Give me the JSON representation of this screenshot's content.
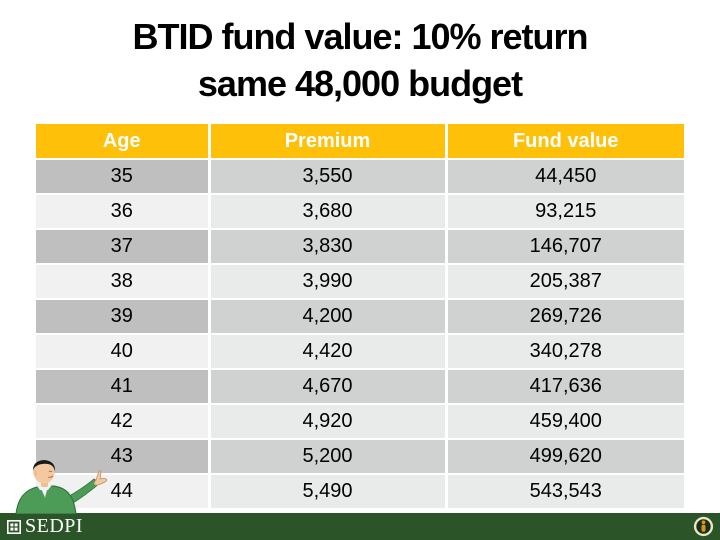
{
  "slide": {
    "title_line1": "BTID fund value: 10% return",
    "title_line2": "same 48,000 budget"
  },
  "table": {
    "headers": [
      "Age",
      "Premium",
      "Fund value"
    ],
    "rows": [
      [
        "35",
        "3,550",
        "44,450"
      ],
      [
        "36",
        "3,680",
        "93,215"
      ],
      [
        "37",
        "3,830",
        "146,707"
      ],
      [
        "38",
        "3,990",
        "205,387"
      ],
      [
        "39",
        "4,200",
        "269,726"
      ],
      [
        "40",
        "4,420",
        "340,278"
      ],
      [
        "41",
        "4,670",
        "417,636"
      ],
      [
        "42",
        "4,920",
        "459,400"
      ],
      [
        "43",
        "5,200",
        "499,620"
      ],
      [
        "44",
        "5,490",
        "543,543"
      ]
    ]
  },
  "footer": {
    "brand": "SEDPI"
  },
  "icons": {
    "logo_square": "sedpi-square-logo",
    "info_seal": "info-seal-icon",
    "presenter": "presenter-character"
  },
  "colors": {
    "header_bg": "#FEC009",
    "footer_bg": "#2B5528",
    "row_dark_age": "#BFBFBF",
    "row_dark_cell": "#CFD2D0",
    "row_light_age": "#F1F1F1",
    "row_light_cell": "#E9EBEA",
    "seal_orange": "#E58E1A"
  }
}
